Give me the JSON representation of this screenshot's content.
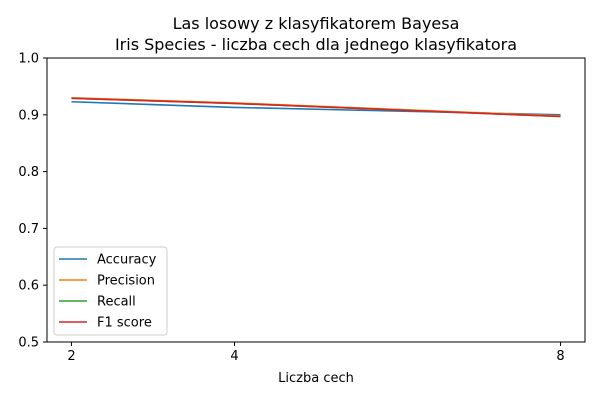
{
  "chart_data": {
    "type": "line",
    "title": "Las losowy z klasyfikatorem Bayesa",
    "subtitle": "Iris Species - liczba cech dla jednego klasyfikatora",
    "xlabel": "Liczba cech",
    "ylabel": "",
    "x": [
      2,
      4,
      8
    ],
    "xticks": [
      "2",
      "4",
      "8"
    ],
    "xlim": [
      1.7,
      8.3
    ],
    "ylim": [
      0.5,
      1.0
    ],
    "yticks": [
      "0.5",
      "0.6",
      "0.7",
      "0.8",
      "0.9",
      "1.0"
    ],
    "grid": false,
    "legend_position": "lower-left",
    "series": [
      {
        "name": "Accuracy",
        "color": "#1f77b4",
        "values": [
          0.923,
          0.913,
          0.9
        ]
      },
      {
        "name": "Precision",
        "color": "#ff7f0e",
        "values": [
          0.93,
          0.921,
          0.898
        ]
      },
      {
        "name": "Recall",
        "color": "#2ca02c",
        "values": [
          0.929,
          0.92,
          0.897
        ]
      },
      {
        "name": "F1 score",
        "color": "#d62728",
        "values": [
          0.929,
          0.92,
          0.897
        ]
      }
    ]
  }
}
